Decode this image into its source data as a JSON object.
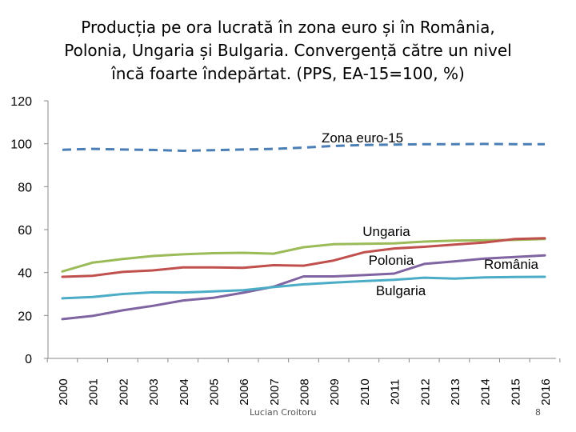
{
  "slide": {
    "title_lines": [
      "Producția pe ora lucrată în zona euro și în România,",
      "Polonia, Ungaria și Bulgaria. Convergență către un nivel",
      "încă foarte îndepărtat. (PPS, EA-15=100, %)"
    ],
    "author": "Lucian Croitoru",
    "page_number": "8"
  },
  "chart_data": {
    "type": "line",
    "title": "Producția pe ora lucrată în zona euro și în România, Polonia, Ungaria și Bulgaria. Convergență către un nivel încă foarte îndepărtat. (PPS, EA-15=100, %)",
    "xlabel": "",
    "ylabel": "",
    "ylim": [
      0,
      120
    ],
    "yticks": [
      0,
      20,
      40,
      60,
      80,
      100,
      120
    ],
    "x": [
      "2000",
      "2001",
      "2002",
      "2003",
      "2004",
      "2005",
      "2006",
      "2007",
      "2008",
      "2009",
      "2010",
      "2011",
      "2012",
      "2013",
      "2014",
      "2015",
      "2016"
    ],
    "grid": false,
    "legend": "none",
    "series": [
      {
        "name": "Zona euro-15",
        "color": "#4a7eb5",
        "dashed": true,
        "values": [
          97.2,
          97.6,
          97.3,
          97.1,
          96.7,
          97.0,
          97.3,
          97.6,
          98.2,
          99.0,
          99.4,
          99.6,
          99.8,
          99.8,
          99.9,
          99.8,
          99.8
        ]
      },
      {
        "name": "Ungaria",
        "color": "#9bbb59",
        "dashed": false,
        "values": [
          40.5,
          44.6,
          46.3,
          47.7,
          48.5,
          49.0,
          49.2,
          48.8,
          51.8,
          53.2,
          53.4,
          53.6,
          54.4,
          54.9,
          55.0,
          55.2,
          55.6
        ]
      },
      {
        "name": "Polonia",
        "color": "#c0504d",
        "dashed": false,
        "values": [
          38.0,
          38.5,
          40.3,
          41.0,
          42.4,
          42.4,
          42.2,
          43.4,
          43.2,
          45.6,
          49.4,
          51.2,
          52.0,
          53.0,
          54.0,
          55.6,
          56.0
        ]
      },
      {
        "name": "România",
        "color": "#8064a2",
        "dashed": false,
        "values": [
          18.3,
          19.8,
          22.4,
          24.5,
          27.0,
          28.2,
          30.6,
          33.4,
          38.2,
          38.2,
          38.8,
          39.5,
          44.0,
          45.2,
          46.5,
          47.2,
          48.0
        ]
      },
      {
        "name": "Bulgaria",
        "color": "#4bacc6",
        "dashed": false,
        "values": [
          28.0,
          28.6,
          30.0,
          30.8,
          30.7,
          31.2,
          31.8,
          33.2,
          34.5,
          35.3,
          36.0,
          36.6,
          37.6,
          37.2,
          37.7,
          37.9,
          38.0
        ]
      }
    ],
    "annotations": [
      "Zona euro-15",
      "Ungaria",
      "Polonia",
      "România",
      "Bulgaria"
    ]
  }
}
